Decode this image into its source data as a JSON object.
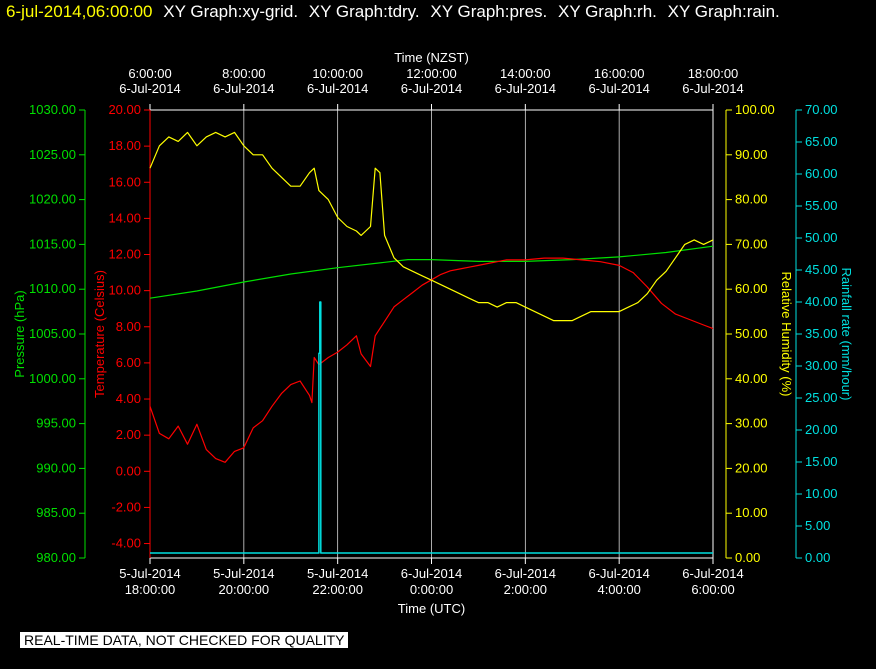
{
  "header": {
    "timestamp": "6-jul-2014,06:00:00",
    "titles": [
      "XY Graph:xy-grid.",
      "XY Graph:tdry.",
      "XY Graph:pres.",
      "XY Graph:rh.",
      "XY Graph:rain."
    ]
  },
  "footer": "REAL-TIME DATA, NOT CHECKED FOR QUALITY",
  "colors": {
    "pressure": "#00e000",
    "temperature": "#ff0000",
    "humidity": "#ffff00",
    "rainfall": "#00e0e0",
    "grid": "#ffffff",
    "background": "#000000"
  },
  "chart_data": {
    "type": "line",
    "x_range_hours_utc": [
      18,
      30
    ],
    "top_axis": {
      "label": "Time (NZST)",
      "ticks": [
        {
          "time": "6:00:00",
          "date": "6-Jul-2014",
          "hour": 18
        },
        {
          "time": "8:00:00",
          "date": "6-Jul-2014",
          "hour": 20
        },
        {
          "time": "10:00:00",
          "date": "6-Jul-2014",
          "hour": 22
        },
        {
          "time": "12:00:00",
          "date": "6-Jul-2014",
          "hour": 24
        },
        {
          "time": "14:00:00",
          "date": "6-Jul-2014",
          "hour": 26
        },
        {
          "time": "16:00:00",
          "date": "6-Jul-2014",
          "hour": 28
        },
        {
          "time": "18:00:00",
          "date": "6-Jul-2014",
          "hour": 30
        }
      ]
    },
    "bottom_axis": {
      "label": "Time (UTC)",
      "ticks": [
        {
          "date": "5-Jul-2014",
          "time": "18:00:00",
          "hour": 18
        },
        {
          "date": "5-Jul-2014",
          "time": "20:00:00",
          "hour": 20
        },
        {
          "date": "5-Jul-2014",
          "time": "22:00:00",
          "hour": 22
        },
        {
          "date": "6-Jul-2014",
          "time": "0:00:00",
          "hour": 24
        },
        {
          "date": "6-Jul-2014",
          "time": "2:00:00",
          "hour": 26
        },
        {
          "date": "6-Jul-2014",
          "time": "4:00:00",
          "hour": 28
        },
        {
          "date": "6-Jul-2014",
          "time": "6:00:00",
          "hour": 30
        }
      ]
    },
    "axes": {
      "pressure": {
        "label": "Pressure (hPa)",
        "range": [
          980,
          1030
        ],
        "ticks": [
          "980.00",
          "985.00",
          "990.00",
          "995.00",
          "1000.00",
          "1005.00",
          "1010.00",
          "1015.00",
          "1020.00",
          "1025.00",
          "1030.00"
        ]
      },
      "temperature": {
        "label": "Temperature (Celsius)",
        "range": [
          -4.8,
          20
        ],
        "ticks": [
          "-4.00",
          "-2.00",
          "0.00",
          "2.00",
          "4.00",
          "6.00",
          "8.00",
          "10.00",
          "12.00",
          "14.00",
          "16.00",
          "18.00",
          "20.00"
        ]
      },
      "humidity": {
        "label": "Relative Humidity (%)",
        "range": [
          0,
          100
        ],
        "ticks": [
          "0.00",
          "10.00",
          "20.00",
          "30.00",
          "40.00",
          "50.00",
          "60.00",
          "70.00",
          "80.00",
          "90.00",
          "100.00"
        ]
      },
      "rainfall": {
        "label": "Rainfall rate (mm/hour)",
        "range": [
          0,
          70
        ],
        "ticks": [
          "0.00",
          "5.00",
          "10.00",
          "15.00",
          "20.00",
          "25.00",
          "30.00",
          "35.00",
          "40.00",
          "45.00",
          "50.00",
          "55.00",
          "60.00",
          "65.00",
          "70.00"
        ]
      }
    },
    "series": [
      {
        "name": "pres",
        "axis": "pressure",
        "x": [
          18.0,
          19.0,
          20.0,
          21.0,
          22.0,
          23.0,
          23.5,
          24.0,
          25.0,
          26.0,
          27.0,
          28.0,
          29.0,
          30.0
        ],
        "y": [
          1009.0,
          1009.8,
          1010.8,
          1011.7,
          1012.4,
          1013.0,
          1013.3,
          1013.3,
          1013.1,
          1013.1,
          1013.3,
          1013.6,
          1014.1,
          1014.8
        ]
      },
      {
        "name": "tdry",
        "axis": "temperature",
        "x": [
          18.0,
          18.2,
          18.4,
          18.6,
          18.8,
          19.0,
          19.2,
          19.4,
          19.6,
          19.8,
          20.0,
          20.2,
          20.4,
          20.6,
          20.8,
          21.0,
          21.2,
          21.4,
          21.45,
          21.5,
          21.6,
          21.8,
          22.0,
          22.2,
          22.4,
          22.5,
          22.7,
          22.8,
          22.9,
          23.0,
          23.2,
          23.4,
          23.6,
          23.8,
          24.0,
          24.2,
          24.4,
          24.6,
          24.8,
          25.0,
          25.2,
          25.4,
          25.6,
          25.8,
          26.0,
          26.4,
          26.8,
          27.2,
          27.6,
          28.0,
          28.3,
          28.6,
          28.9,
          29.2,
          29.5,
          29.8,
          30.0
        ],
        "y": [
          3.6,
          2.1,
          1.8,
          2.5,
          1.5,
          2.6,
          1.2,
          0.7,
          0.5,
          1.1,
          1.3,
          2.4,
          2.8,
          3.6,
          4.3,
          4.8,
          5.0,
          4.2,
          3.8,
          6.3,
          5.9,
          6.3,
          6.6,
          7.0,
          7.5,
          6.5,
          5.8,
          7.5,
          7.9,
          8.3,
          9.1,
          9.5,
          9.9,
          10.3,
          10.6,
          10.9,
          11.1,
          11.2,
          11.3,
          11.4,
          11.5,
          11.6,
          11.7,
          11.7,
          11.7,
          11.8,
          11.8,
          11.7,
          11.6,
          11.4,
          11.0,
          10.2,
          9.3,
          8.7,
          8.4,
          8.1,
          7.9
        ]
      },
      {
        "name": "rh",
        "axis": "humidity",
        "x": [
          18.0,
          18.2,
          18.4,
          18.6,
          18.8,
          19.0,
          19.2,
          19.4,
          19.6,
          19.8,
          20.0,
          20.2,
          20.4,
          20.6,
          20.8,
          21.0,
          21.2,
          21.4,
          21.5,
          21.6,
          21.8,
          22.0,
          22.2,
          22.4,
          22.5,
          22.7,
          22.8,
          22.9,
          23.0,
          23.2,
          23.4,
          23.6,
          23.8,
          24.0,
          24.2,
          24.4,
          24.6,
          24.8,
          25.0,
          25.2,
          25.4,
          25.6,
          25.8,
          26.0,
          26.2,
          26.4,
          26.6,
          26.8,
          27.0,
          27.2,
          27.4,
          27.6,
          27.8,
          28.0,
          28.2,
          28.4,
          28.6,
          28.8,
          29.0,
          29.2,
          29.4,
          29.6,
          29.8,
          30.0
        ],
        "y": [
          87,
          92,
          94,
          93,
          95,
          92,
          94,
          95,
          94,
          95,
          92,
          90,
          90,
          87,
          85,
          83,
          83,
          86,
          87,
          82,
          80,
          76,
          74,
          73,
          72,
          74,
          87,
          86,
          72,
          67,
          65,
          64,
          63,
          62,
          61,
          60,
          59,
          58,
          57,
          57,
          56,
          57,
          57,
          56,
          55,
          54,
          53,
          53,
          53,
          54,
          55,
          55,
          55,
          55,
          56,
          57,
          59,
          62,
          64,
          67,
          70,
          71,
          70,
          71
        ]
      },
      {
        "name": "rain",
        "axis": "rainfall",
        "x": [
          18.0,
          21.6,
          21.6,
          21.62,
          21.62,
          21.64,
          21.64,
          30.0
        ],
        "y": [
          0,
          0,
          32,
          32,
          40,
          40,
          0,
          0
        ]
      }
    ]
  }
}
